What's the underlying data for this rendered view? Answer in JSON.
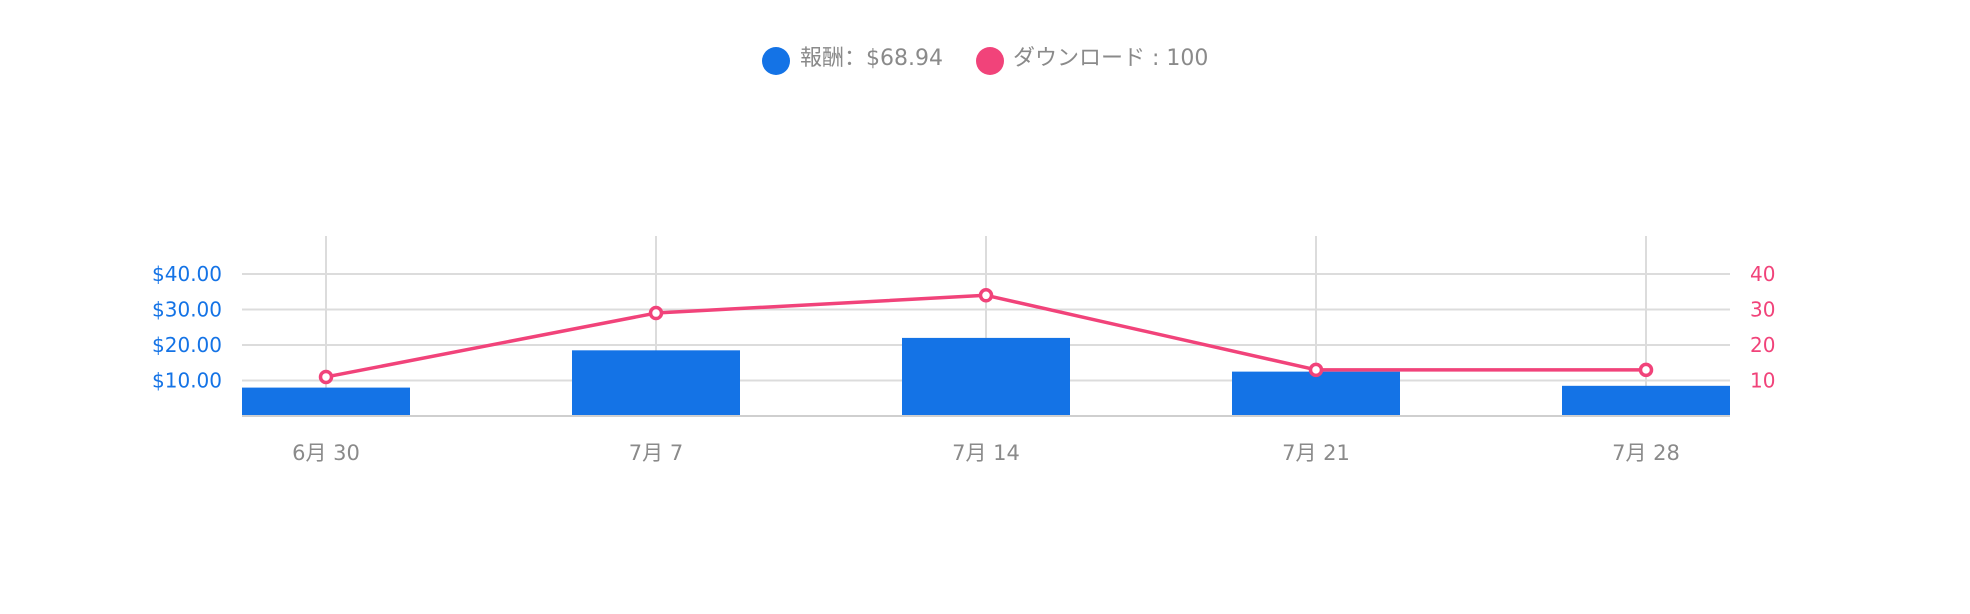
{
  "chart_data": {
    "type": "bar",
    "categories": [
      "6月 30",
      "7月 7",
      "7月 14",
      "7月 21",
      "7月 28"
    ],
    "series": [
      {
        "name": "報酬",
        "type": "bar",
        "axis": "left",
        "color": "#1473e6",
        "values": [
          8,
          18.5,
          22,
          12.5,
          8.5
        ]
      },
      {
        "name": "ダウンロード",
        "type": "line",
        "axis": "right",
        "color": "#f1437a",
        "values": [
          11,
          29,
          34,
          13,
          13
        ]
      }
    ],
    "legend": {
      "position": "top-center",
      "items": [
        {
          "label": "報酬：$68.94",
          "color": "#1473e6"
        },
        {
          "label": "ダウンロード : 100",
          "color": "#f1437a"
        }
      ]
    },
    "y_left": {
      "ticks": [
        10,
        20,
        30,
        40
      ],
      "tick_labels": [
        "$10.00",
        "$20.00",
        "$30.00",
        "$40.00"
      ],
      "range": [
        0,
        50
      ],
      "color": "#1473e6"
    },
    "y_right": {
      "ticks": [
        10,
        20,
        30,
        40
      ],
      "tick_labels": [
        "10",
        "20",
        "30",
        "40"
      ],
      "range": [
        0,
        50
      ],
      "color": "#f1437a"
    },
    "grid": true
  }
}
